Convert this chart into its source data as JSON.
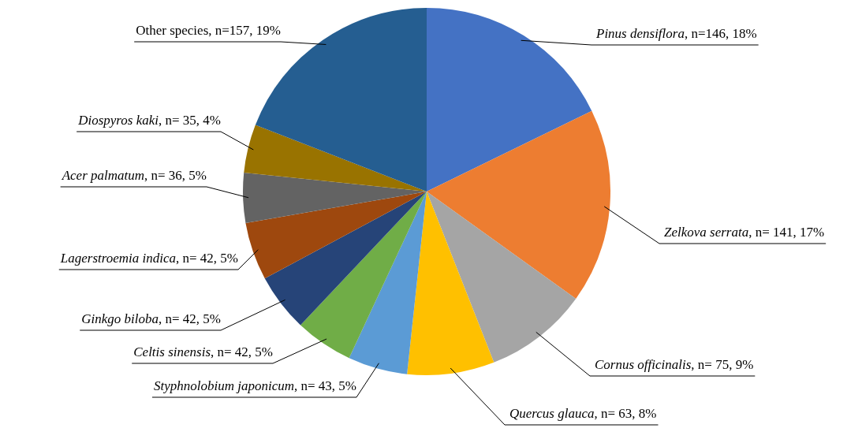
{
  "chart_data": {
    "type": "pie",
    "categories": [
      "Pinus densiflora",
      "Zelkova serrata",
      "Cornus officinalis",
      "Quercus glauca",
      "Styphnolobium japonicum",
      "Celtis sinensis",
      "Ginkgo biloba",
      "Lagerstroemia indica",
      "Acer palmatum",
      "Diospyros kaki",
      "Other species"
    ],
    "values": [
      146,
      141,
      75,
      63,
      43,
      42,
      42,
      42,
      36,
      35,
      157
    ],
    "value_labels": [
      ", n=146, 18%",
      ", n= 141, 17%",
      ", n= 75, 9%",
      ", n= 63, 8%",
      ", n= 43, 5%",
      ", n= 42, 5%",
      ", n= 42, 5%",
      ", n= 42, 5%",
      ", n= 36, 5%",
      ", n= 35, 4%",
      ", n=157, 19%"
    ],
    "colors": [
      "#4472c4",
      "#ed7d31",
      "#a5a5a5",
      "#ffc000",
      "#5b9bd5",
      "#70ad47",
      "#264478",
      "#9e480e",
      "#636363",
      "#997300",
      "#255e91"
    ],
    "legend": false
  }
}
